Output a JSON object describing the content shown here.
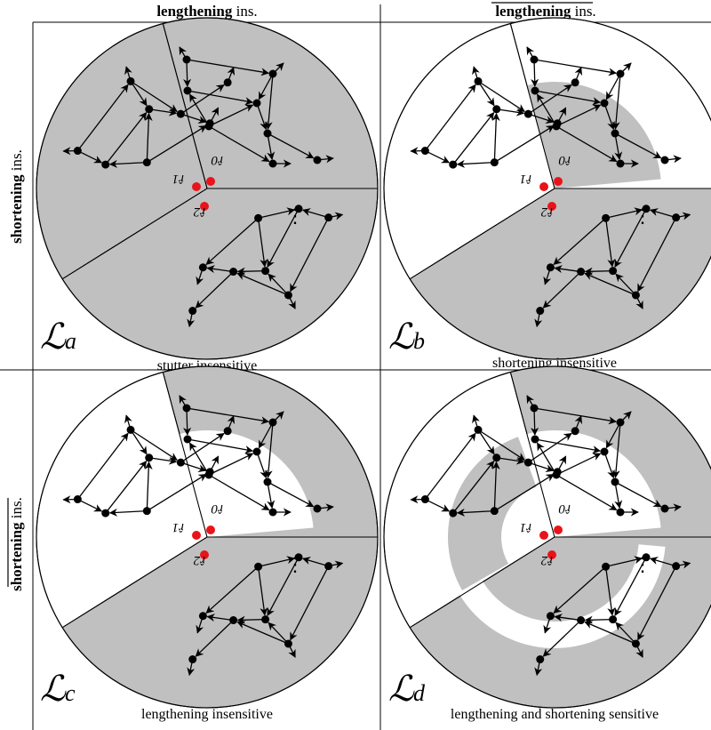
{
  "headers": {
    "col1": {
      "bold": "lengthening",
      "rest": " ins."
    },
    "col2": {
      "bold": "lengthening",
      "rest": " ins."
    },
    "row1": {
      "bold": "shortening",
      "rest": " ins."
    },
    "row2": {
      "bold": "shortening",
      "rest": " ins."
    }
  },
  "panels": [
    {
      "id": "a",
      "lang": "ℒ",
      "sub": "a",
      "caption": "stutter insensitive",
      "shaded": [
        true,
        true,
        true
      ],
      "bands": []
    },
    {
      "id": "b",
      "lang": "ℒ",
      "sub": "b",
      "caption": "shortening insensitive",
      "shaded": [
        false,
        false,
        true
      ],
      "bands": [
        "band0"
      ]
    },
    {
      "id": "c",
      "lang": "ℒ",
      "sub": "c",
      "caption": "lengthening insensitive",
      "shaded": [
        true,
        false,
        true
      ],
      "bands": [
        "ring0"
      ]
    },
    {
      "id": "d",
      "lang": "ℒ",
      "sub": "d",
      "caption": "lengthening and shortening sensitive",
      "shaded": [
        true,
        false,
        true
      ],
      "bands": [
        "ring0",
        "ring2",
        "band1"
      ]
    }
  ],
  "run_labels": {
    "r0": "r̂0",
    "r1": "r̂1",
    "r2": "r̂2"
  },
  "ellipsis": "⋮",
  "colors": {
    "shade": "#c0c0c0",
    "accepting": "#e8141a",
    "node": "#000000"
  }
}
